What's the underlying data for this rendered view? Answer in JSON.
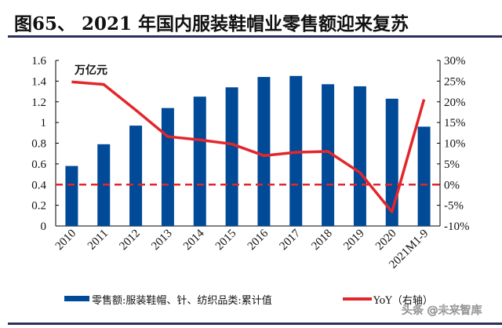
{
  "title": "图65、 2021 年国内服装鞋帽业零售额迎来复苏",
  "watermark": "头条 @未来智库",
  "chart_data": {
    "type": "bar+line",
    "categories": [
      "2010",
      "2011",
      "2012",
      "2013",
      "2014",
      "2015",
      "2016",
      "2017",
      "2018",
      "2019",
      "2020",
      "2021M1-9"
    ],
    "unit_label": "万亿元",
    "series": [
      {
        "name": "零售额:服装鞋帽、针、纺织品类:累计值",
        "type": "bar",
        "axis": "left",
        "color": "#004a97",
        "values": [
          0.58,
          0.79,
          0.97,
          1.14,
          1.25,
          1.34,
          1.44,
          1.45,
          1.37,
          1.35,
          1.23,
          0.96
        ]
      },
      {
        "name": "YoY（右轴）",
        "type": "line",
        "axis": "right",
        "color": "#e3262b",
        "values": [
          24.8,
          24.2,
          18.0,
          11.6,
          10.8,
          9.8,
          7.0,
          7.8,
          8.0,
          2.9,
          -6.6,
          20.6
        ]
      }
    ],
    "left_axis": {
      "range": [
        0,
        1.6
      ],
      "ticks": [
        "0",
        "0.2",
        "0.4",
        "0.6",
        "0.8",
        "1",
        "1.2",
        "1.4",
        "1.6"
      ]
    },
    "right_axis": {
      "range": [
        -10,
        30
      ],
      "ticks": [
        "-10%",
        "-5%",
        "0%",
        "5%",
        "10%",
        "15%",
        "20%",
        "25%",
        "30%"
      ]
    },
    "reference_line": {
      "value": 0,
      "axis": "right",
      "style": "dashed",
      "color": "#e3262b"
    },
    "grid": false,
    "legend": "bottom"
  }
}
